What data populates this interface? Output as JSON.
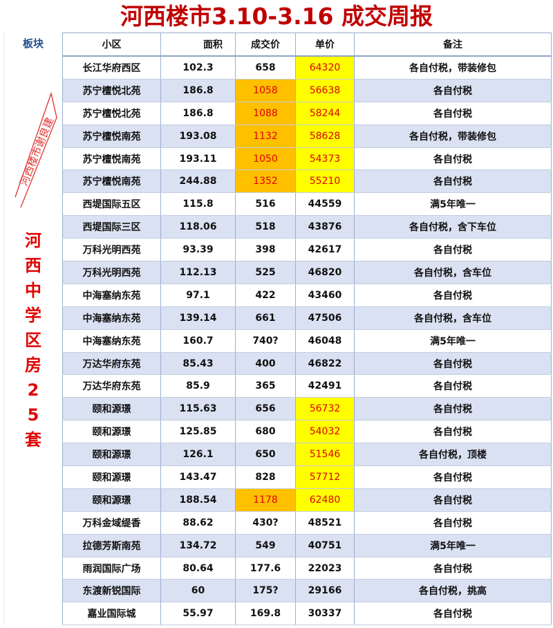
{
  "title": "河西楼市3.10-3.16 成交周报",
  "side": {
    "header": "板块",
    "label": "河西中学区房25套",
    "label_chars": [
      "河",
      "西",
      "中",
      "学",
      "区",
      "房",
      "2",
      "5",
      "套"
    ]
  },
  "columns": [
    "小区",
    "面积",
    "成交价",
    "单价",
    "备注"
  ],
  "colors": {
    "title": "#c00000",
    "highlight_orange": "#ffc000",
    "highlight_yellow": "#ffff00",
    "alt_row": "#d9e1f2",
    "highlight_text": "#e00000"
  },
  "watermark": "河西楼市谢良建",
  "rows": [
    {
      "name": "长江华府西区",
      "area": "102.3",
      "price": "658",
      "unit": "64320",
      "note": "各自付税，带装修包",
      "hp": "",
      "hu": "yellow"
    },
    {
      "name": "苏宁檀悦北苑",
      "area": "186.8",
      "price": "1058",
      "unit": "56638",
      "note": "各自付税",
      "hp": "orange",
      "hu": "yellow"
    },
    {
      "name": "苏宁檀悦北苑",
      "area": "186.8",
      "price": "1088",
      "unit": "58244",
      "note": "各自付税",
      "hp": "orange",
      "hu": "yellow"
    },
    {
      "name": "苏宁檀悦南苑",
      "area": "193.08",
      "price": "1132",
      "unit": "58628",
      "note": "各自付税，带装修包",
      "hp": "orange",
      "hu": "yellow"
    },
    {
      "name": "苏宁檀悦南苑",
      "area": "193.11",
      "price": "1050",
      "unit": "54373",
      "note": "各自付税",
      "hp": "orange",
      "hu": "yellow"
    },
    {
      "name": "苏宁檀悦南苑",
      "area": "244.88",
      "price": "1352",
      "unit": "55210",
      "note": "各自付税",
      "hp": "orange",
      "hu": "yellow"
    },
    {
      "name": "西堤国际五区",
      "area": "115.8",
      "price": "516",
      "unit": "44559",
      "note": "满5年唯一",
      "hp": "",
      "hu": ""
    },
    {
      "name": "西堤国际三区",
      "area": "118.06",
      "price": "518",
      "unit": "43876",
      "note": "各自付税，含下车位",
      "hp": "",
      "hu": ""
    },
    {
      "name": "万科光明西苑",
      "area": "93.39",
      "price": "398",
      "unit": "42617",
      "note": "各自付税",
      "hp": "",
      "hu": ""
    },
    {
      "name": "万科光明西苑",
      "area": "112.13",
      "price": "525",
      "unit": "46820",
      "note": "各自付税，含车位",
      "hp": "",
      "hu": ""
    },
    {
      "name": "中海塞纳东苑",
      "area": "97.1",
      "price": "422",
      "unit": "43460",
      "note": "各自付税",
      "hp": "",
      "hu": ""
    },
    {
      "name": "中海塞纳东苑",
      "area": "139.14",
      "price": "661",
      "unit": "47506",
      "note": "各自付税，含车位",
      "hp": "",
      "hu": ""
    },
    {
      "name": "中海塞纳东苑",
      "area": "160.7",
      "price": "740?",
      "unit": "46048",
      "note": "满5年唯一",
      "hp": "",
      "hu": ""
    },
    {
      "name": "万达华府东苑",
      "area": "85.43",
      "price": "400",
      "unit": "46822",
      "note": "各自付税",
      "hp": "",
      "hu": ""
    },
    {
      "name": "万达华府东苑",
      "area": "85.9",
      "price": "365",
      "unit": "42491",
      "note": "各自付税",
      "hp": "",
      "hu": ""
    },
    {
      "name": "颐和源璟",
      "area": "115.63",
      "price": "656",
      "unit": "56732",
      "note": "各自付税",
      "hp": "",
      "hu": "yellow"
    },
    {
      "name": "颐和源璟",
      "area": "125.85",
      "price": "680",
      "unit": "54032",
      "note": "各自付税",
      "hp": "",
      "hu": "yellow"
    },
    {
      "name": "颐和源璟",
      "area": "126.1",
      "price": "650",
      "unit": "51546",
      "note": "各自付税，顶楼",
      "hp": "",
      "hu": "yellow"
    },
    {
      "name": "颐和源璟",
      "area": "143.47",
      "price": "828",
      "unit": "57712",
      "note": "各自付税",
      "hp": "",
      "hu": "yellow"
    },
    {
      "name": "颐和源璟",
      "area": "188.54",
      "price": "1178",
      "unit": "62480",
      "note": "各自付税",
      "hp": "orange",
      "hu": "yellow"
    },
    {
      "name": "万科金域缇香",
      "area": "88.62",
      "price": "430?",
      "unit": "48521",
      "note": "各自付税",
      "hp": "",
      "hu": ""
    },
    {
      "name": "拉德芳斯南苑",
      "area": "134.72",
      "price": "549",
      "unit": "40751",
      "note": "满5年唯一",
      "hp": "",
      "hu": ""
    },
    {
      "name": "雨润国际广场",
      "area": "80.64",
      "price": "177.6",
      "unit": "22023",
      "note": "各自付税",
      "hp": "",
      "hu": ""
    },
    {
      "name": "东渡新锐国际",
      "area": "60",
      "price": "175?",
      "unit": "29166",
      "note": "各自付税，挑高",
      "hp": "",
      "hu": ""
    },
    {
      "name": "嘉业国际城",
      "area": "55.97",
      "price": "169.8",
      "unit": "30337",
      "note": "各自付税",
      "hp": "",
      "hu": ""
    }
  ]
}
